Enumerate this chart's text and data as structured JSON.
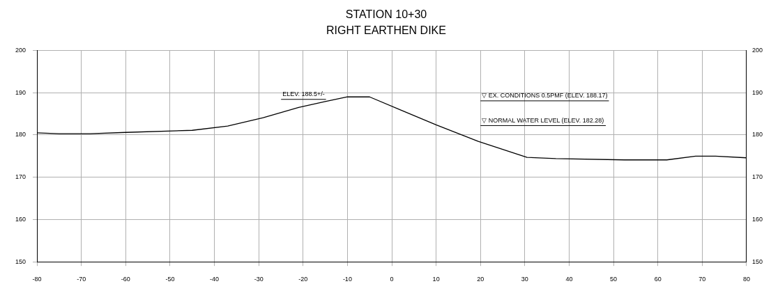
{
  "chart_data": {
    "type": "line",
    "title": "STATION 10+30",
    "subtitle": "RIGHT EARTHEN DIKE",
    "x": [
      -80,
      -75,
      -68,
      -60,
      -45,
      -37,
      -29,
      -21,
      -15,
      -10,
      -5,
      2.5,
      10,
      19.5,
      30.5,
      37,
      52.5,
      62,
      68.5,
      73,
      80
    ],
    "series": [
      {
        "color": "#000000",
        "values": [
          180.5,
          180.3,
          180.3,
          180.6,
          181.1,
          182.1,
          184.1,
          186.5,
          187.9,
          189,
          189,
          185.7,
          182.4,
          178.5,
          174.7,
          174.4,
          174.1,
          174.1,
          175,
          175,
          174.6
        ]
      }
    ],
    "xlim": [
      -80,
      80
    ],
    "xticks": [
      -80,
      -70,
      -60,
      -50,
      -40,
      -30,
      -20,
      -10,
      0,
      10,
      20,
      30,
      40,
      50,
      60,
      70,
      80
    ],
    "ylim": [
      150,
      200
    ],
    "yticks": [
      150,
      160,
      170,
      180,
      190,
      200
    ],
    "y2lim": [
      150,
      200
    ],
    "y2ticks": [
      150,
      160,
      170,
      180,
      190,
      200
    ],
    "grid": true,
    "legend": false,
    "marker": "none",
    "line_style": "solid",
    "annotations": [
      "ELEV. 188.5+/-",
      "▽ EX. CONDITIONS 0.5PMF (ELEV. 188.17)",
      "▽ NORMAL WATER LEVEL (ELEV. 182.28)"
    ]
  }
}
